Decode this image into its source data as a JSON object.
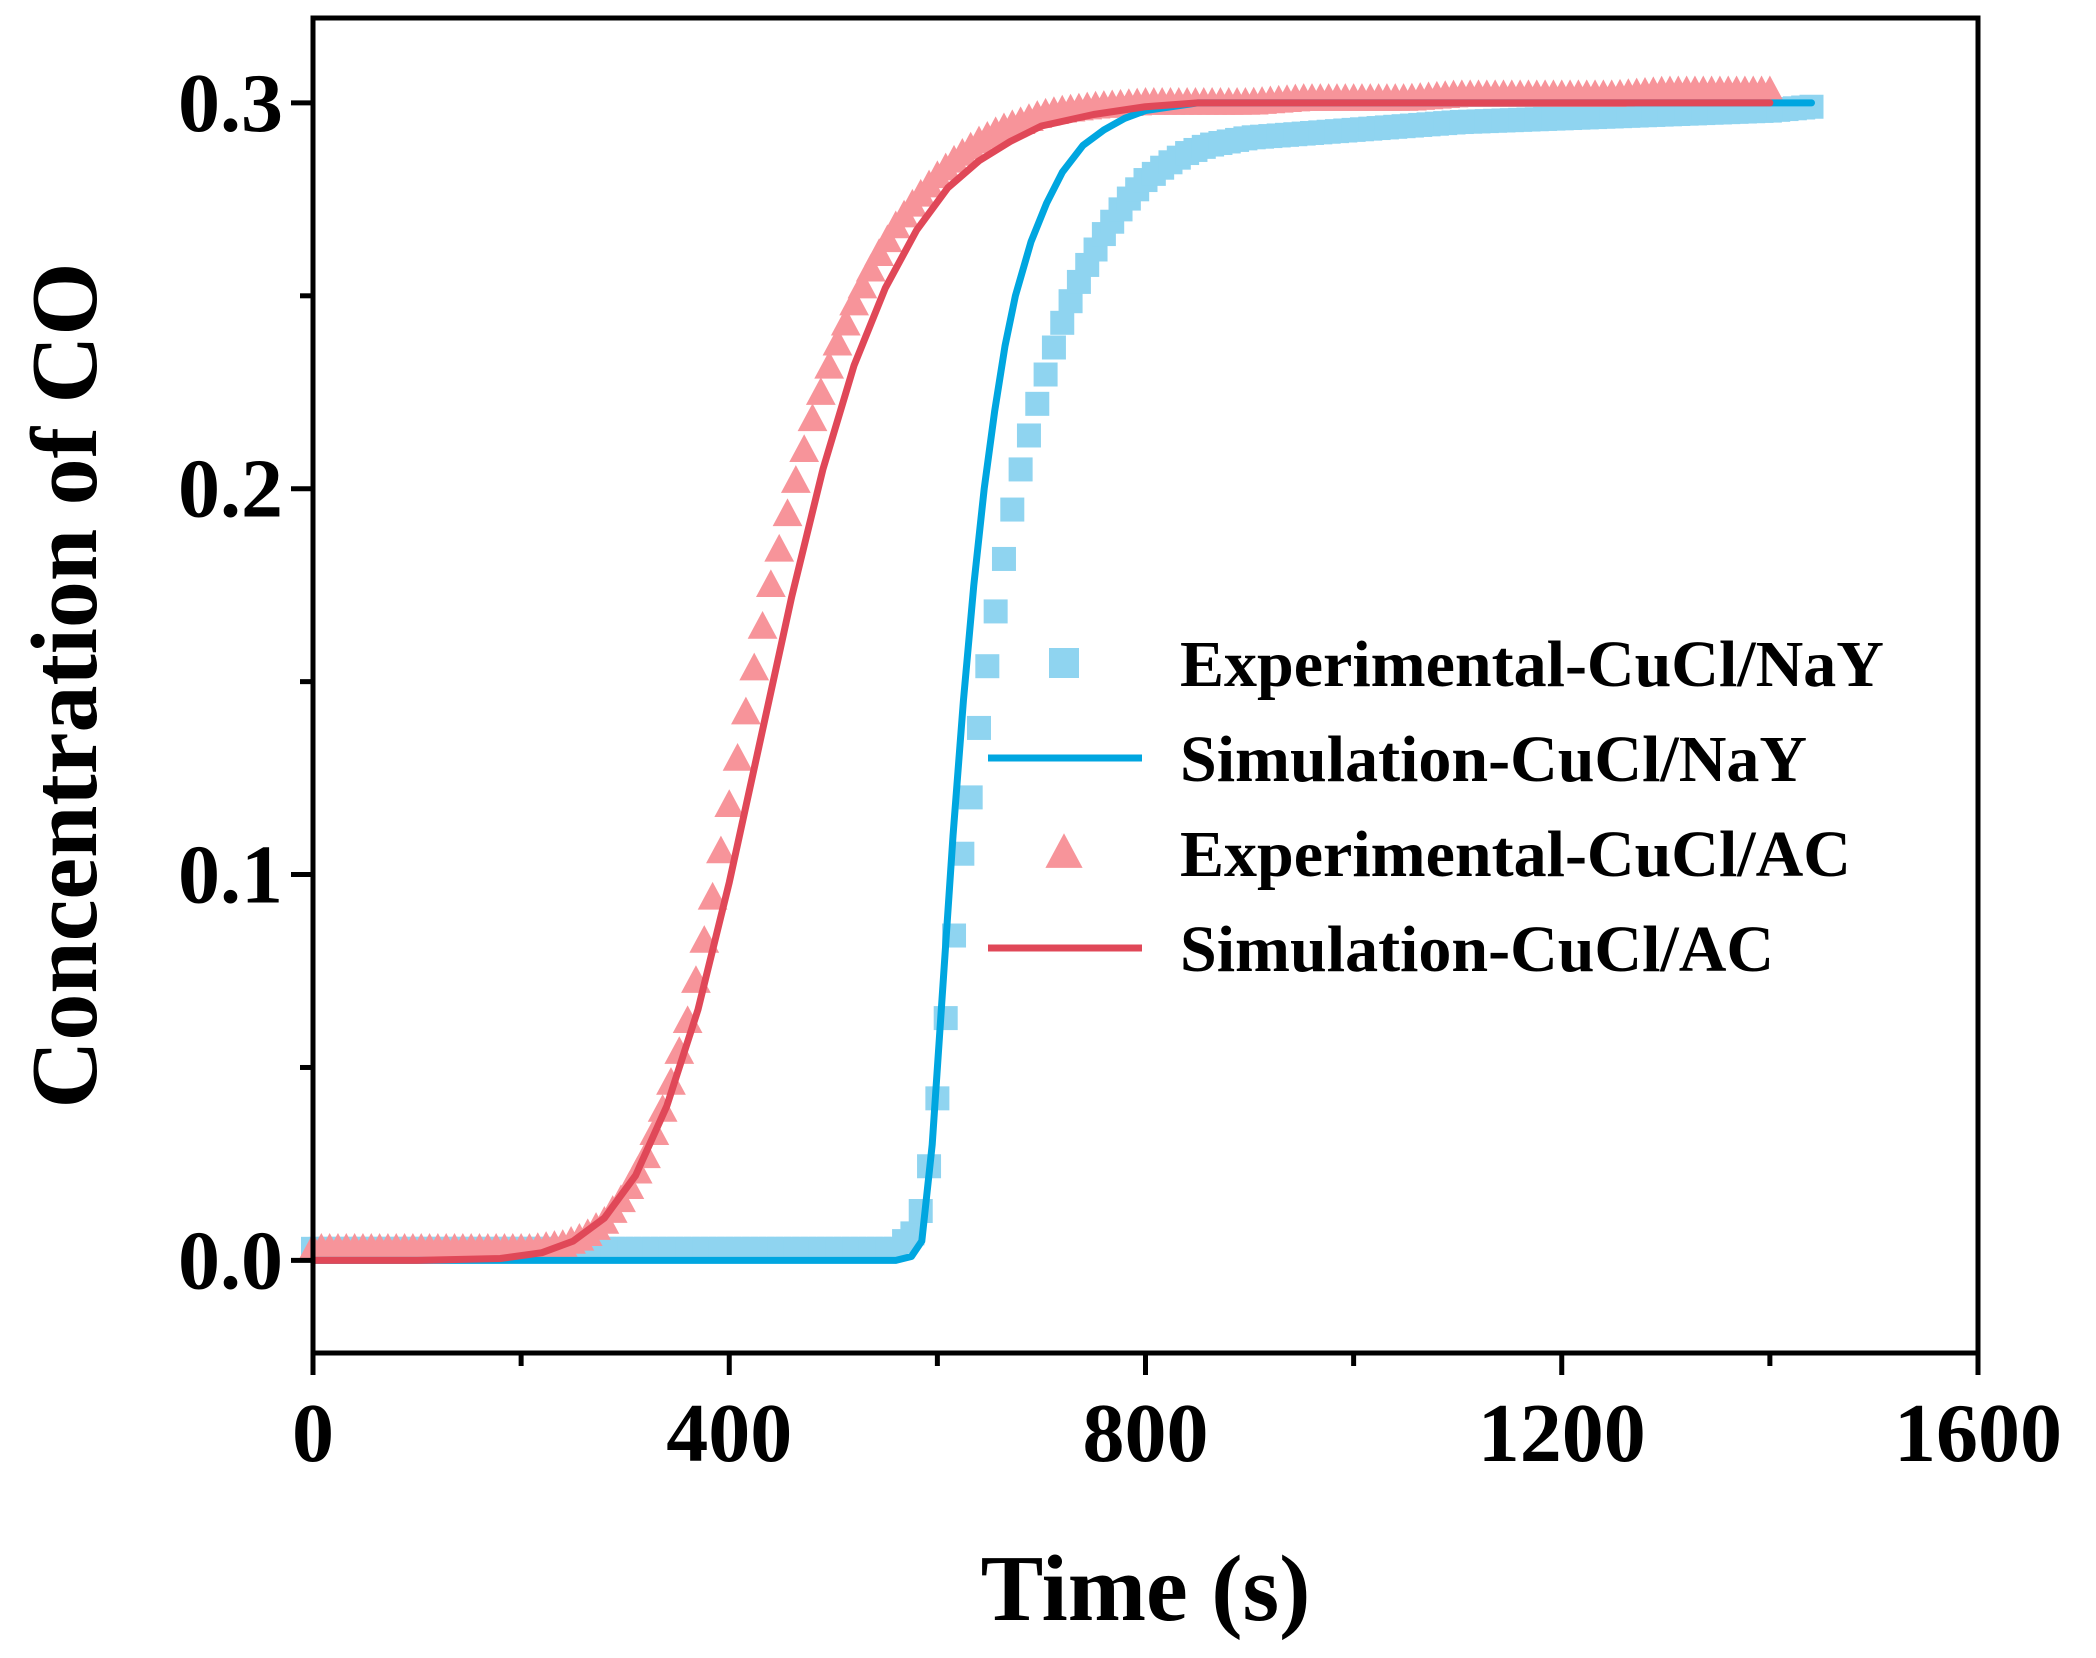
{
  "chart_data": {
    "type": "line",
    "xlabel": "Time (s)",
    "ylabel": "Concentration of CO",
    "xlim": [
      0,
      1600
    ],
    "ylim": [
      -0.024,
      0.322
    ],
    "xticks": [
      0,
      400,
      800,
      1200,
      1600
    ],
    "xtick_labels": [
      "0",
      "400",
      "800",
      "1200",
      "1600"
    ],
    "x_minor_ticks": [
      200,
      600,
      1000,
      1400
    ],
    "yticks": [
      0.0,
      0.1,
      0.2,
      0.3
    ],
    "ytick_labels": [
      "0.0",
      "0.1",
      "0.2",
      "0.3"
    ],
    "y_minor_ticks": [
      0.05,
      0.15,
      0.25
    ],
    "grid": false,
    "legend_position": "center-right",
    "colors": {
      "nay": "#00a6e0",
      "nay_marker": "#8fd4f0",
      "ac": "#e04858",
      "ac_marker": "#f7949a"
    },
    "series": [
      {
        "name": "Experimental-CuCl/NaY",
        "kind": "scatter",
        "marker": "square",
        "points": [
          [
            0,
            0.003
          ],
          [
            40,
            0.003
          ],
          [
            80,
            0.003
          ],
          [
            120,
            0.003
          ],
          [
            160,
            0.003
          ],
          [
            200,
            0.003
          ],
          [
            240,
            0.003
          ],
          [
            280,
            0.003
          ],
          [
            320,
            0.003
          ],
          [
            360,
            0.003
          ],
          [
            400,
            0.003
          ],
          [
            440,
            0.003
          ],
          [
            480,
            0.003
          ],
          [
            520,
            0.003
          ],
          [
            560,
            0.003
          ],
          [
            580,
            0.008
          ],
          [
            590,
            0.02
          ],
          [
            600,
            0.042
          ],
          [
            610,
            0.068
          ],
          [
            620,
            0.095
          ],
          [
            625,
            0.108
          ],
          [
            632,
            0.12
          ],
          [
            640,
            0.138
          ],
          [
            650,
            0.158
          ],
          [
            660,
            0.175
          ],
          [
            670,
            0.192
          ],
          [
            680,
            0.205
          ],
          [
            690,
            0.216
          ],
          [
            700,
            0.226
          ],
          [
            710,
            0.235
          ],
          [
            720,
            0.243
          ],
          [
            730,
            0.25
          ],
          [
            740,
            0.256
          ],
          [
            750,
            0.261
          ],
          [
            760,
            0.266
          ],
          [
            770,
            0.27
          ],
          [
            780,
            0.274
          ],
          [
            790,
            0.277
          ],
          [
            800,
            0.28
          ],
          [
            820,
            0.284
          ],
          [
            840,
            0.287
          ],
          [
            860,
            0.289
          ],
          [
            880,
            0.29
          ],
          [
            900,
            0.291
          ],
          [
            950,
            0.292
          ],
          [
            1000,
            0.293
          ],
          [
            1100,
            0.295
          ],
          [
            1200,
            0.296
          ],
          [
            1300,
            0.297
          ],
          [
            1400,
            0.298
          ],
          [
            1440,
            0.299
          ]
        ]
      },
      {
        "name": "Simulation-CuCl/NaY",
        "kind": "line",
        "points": [
          [
            0,
            0.0
          ],
          [
            100,
            0.0
          ],
          [
            200,
            0.0
          ],
          [
            300,
            0.0
          ],
          [
            400,
            0.0
          ],
          [
            500,
            0.0
          ],
          [
            560,
            0.0
          ],
          [
            575,
            0.001
          ],
          [
            585,
            0.005
          ],
          [
            595,
            0.03
          ],
          [
            605,
            0.07
          ],
          [
            615,
            0.11
          ],
          [
            625,
            0.145
          ],
          [
            635,
            0.175
          ],
          [
            645,
            0.2
          ],
          [
            655,
            0.22
          ],
          [
            665,
            0.237
          ],
          [
            675,
            0.25
          ],
          [
            690,
            0.264
          ],
          [
            705,
            0.274
          ],
          [
            720,
            0.282
          ],
          [
            740,
            0.289
          ],
          [
            760,
            0.293
          ],
          [
            780,
            0.296
          ],
          [
            800,
            0.298
          ],
          [
            850,
            0.3
          ],
          [
            900,
            0.3
          ],
          [
            1000,
            0.3
          ],
          [
            1200,
            0.3
          ],
          [
            1440,
            0.3
          ]
        ]
      },
      {
        "name": "Experimental-CuCl/AC",
        "kind": "scatter",
        "marker": "triangle",
        "points": [
          [
            0,
            0.003
          ],
          [
            30,
            0.003
          ],
          [
            60,
            0.003
          ],
          [
            90,
            0.003
          ],
          [
            120,
            0.003
          ],
          [
            150,
            0.003
          ],
          [
            180,
            0.003
          ],
          [
            210,
            0.003
          ],
          [
            240,
            0.004
          ],
          [
            260,
            0.006
          ],
          [
            280,
            0.01
          ],
          [
            300,
            0.017
          ],
          [
            320,
            0.027
          ],
          [
            340,
            0.042
          ],
          [
            360,
            0.062
          ],
          [
            380,
            0.088
          ],
          [
            400,
            0.118
          ],
          [
            420,
            0.148
          ],
          [
            440,
            0.175
          ],
          [
            460,
            0.198
          ],
          [
            480,
            0.218
          ],
          [
            500,
            0.235
          ],
          [
            520,
            0.248
          ],
          [
            540,
            0.259
          ],
          [
            560,
            0.268
          ],
          [
            580,
            0.275
          ],
          [
            600,
            0.281
          ],
          [
            620,
            0.286
          ],
          [
            640,
            0.29
          ],
          [
            660,
            0.293
          ],
          [
            680,
            0.295
          ],
          [
            700,
            0.297
          ],
          [
            720,
            0.298
          ],
          [
            750,
            0.299
          ],
          [
            800,
            0.3
          ],
          [
            850,
            0.3
          ],
          [
            900,
            0.3
          ],
          [
            950,
            0.301
          ],
          [
            1000,
            0.301
          ],
          [
            1050,
            0.301
          ],
          [
            1100,
            0.302
          ],
          [
            1150,
            0.302
          ],
          [
            1200,
            0.302
          ],
          [
            1250,
            0.302
          ],
          [
            1300,
            0.303
          ],
          [
            1350,
            0.303
          ],
          [
            1400,
            0.303
          ]
        ]
      },
      {
        "name": "Simulation-CuCl/AC",
        "kind": "line",
        "points": [
          [
            0,
            0.0
          ],
          [
            100,
            0.0
          ],
          [
            180,
            0.0005
          ],
          [
            220,
            0.002
          ],
          [
            250,
            0.005
          ],
          [
            280,
            0.011
          ],
          [
            310,
            0.022
          ],
          [
            340,
            0.04
          ],
          [
            370,
            0.065
          ],
          [
            400,
            0.098
          ],
          [
            430,
            0.135
          ],
          [
            460,
            0.172
          ],
          [
            490,
            0.205
          ],
          [
            520,
            0.232
          ],
          [
            550,
            0.252
          ],
          [
            580,
            0.267
          ],
          [
            610,
            0.278
          ],
          [
            640,
            0.285
          ],
          [
            670,
            0.29
          ],
          [
            700,
            0.294
          ],
          [
            750,
            0.297
          ],
          [
            800,
            0.299
          ],
          [
            850,
            0.3
          ],
          [
            900,
            0.3
          ],
          [
            1000,
            0.3
          ],
          [
            1200,
            0.3
          ],
          [
            1400,
            0.3
          ]
        ]
      }
    ]
  }
}
